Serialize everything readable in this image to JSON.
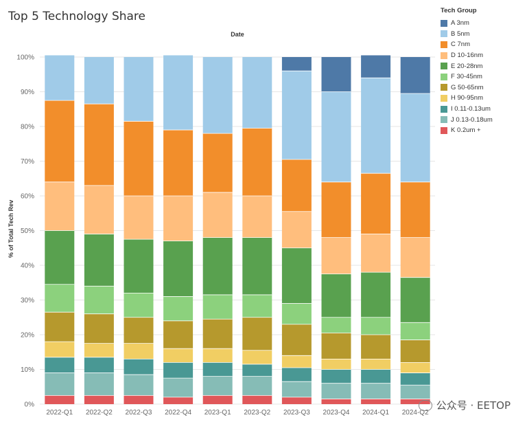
{
  "chart_data": {
    "type": "bar",
    "stacked": true,
    "title": "Top 5 Technology Share",
    "xlabel": "Date",
    "ylabel": "% of Total Tech Rev",
    "ylim": [
      0,
      100
    ],
    "yticks": [
      0,
      10,
      20,
      30,
      40,
      50,
      60,
      70,
      80,
      90,
      100
    ],
    "ytick_labels": [
      "0%",
      "10%",
      "20%",
      "30%",
      "40%",
      "50%",
      "60%",
      "70%",
      "80%",
      "90%",
      "100%"
    ],
    "gridlines": true,
    "legend_title": "Tech Group",
    "legend_position": "right",
    "categories": [
      "2022-Q1",
      "2022-Q2",
      "2022-Q3",
      "2022-Q4",
      "2023-Q1",
      "2023-Q2",
      "2023-Q3",
      "2023-Q4",
      "2024-Q1",
      "2024-Q2"
    ],
    "series": [
      {
        "name": "K 0.2um +",
        "color": "#e05759",
        "values": [
          2.5,
          2.5,
          2.5,
          2.0,
          2.5,
          2.5,
          2.0,
          1.5,
          1.5,
          1.5
        ]
      },
      {
        "name": "J 0.13-0.18um",
        "color": "#86bcb6",
        "values": [
          6.5,
          6.5,
          6.0,
          5.5,
          5.5,
          5.5,
          4.5,
          4.5,
          4.5,
          4.0
        ]
      },
      {
        "name": "I 0.11-0.13um",
        "color": "#499894",
        "values": [
          4.5,
          4.5,
          4.5,
          4.5,
          4.0,
          3.5,
          4.0,
          4.0,
          4.0,
          3.5
        ]
      },
      {
        "name": "H 90-95nm",
        "color": "#f1ce63",
        "values": [
          4.5,
          4.0,
          4.5,
          4.0,
          4.0,
          4.0,
          3.5,
          3.0,
          3.0,
          3.0
        ]
      },
      {
        "name": "G 50-65nm",
        "color": "#b6992d",
        "values": [
          8.5,
          8.5,
          7.5,
          8.0,
          8.5,
          9.5,
          9.0,
          7.5,
          7.0,
          6.5
        ]
      },
      {
        "name": "F 30-45nm",
        "color": "#8cd17d",
        "values": [
          8.0,
          8.0,
          7.0,
          7.0,
          7.0,
          6.5,
          6.0,
          4.5,
          5.0,
          5.0
        ]
      },
      {
        "name": "E 20-28nm",
        "color": "#59a14f",
        "values": [
          15.5,
          15.0,
          15.5,
          16.0,
          16.5,
          16.5,
          16.0,
          12.5,
          13.0,
          13.0
        ]
      },
      {
        "name": "D 10-16nm",
        "color": "#ffbe7d",
        "values": [
          14.0,
          14.0,
          12.5,
          13.0,
          13.0,
          12.0,
          10.5,
          10.5,
          11.0,
          11.5
        ]
      },
      {
        "name": "C 7nm",
        "color": "#f28e2b",
        "values": [
          23.5,
          23.5,
          21.5,
          19.0,
          17.0,
          19.5,
          15.0,
          16.0,
          17.5,
          16.0
        ]
      },
      {
        "name": "B 5nm",
        "color": "#a0cbe8",
        "values": [
          13.0,
          13.5,
          18.5,
          21.5,
          22.0,
          20.5,
          25.5,
          26.0,
          27.5,
          25.5
        ]
      },
      {
        "name": "A 3nm",
        "color": "#4e79a7",
        "values": [
          0,
          0,
          0,
          0,
          0,
          0,
          4.0,
          10.0,
          6.5,
          10.5
        ]
      }
    ]
  },
  "legend_order": [
    "A 3nm",
    "B 5nm",
    "C 7nm",
    "D 10-16nm",
    "E 20-28nm",
    "F 30-45nm",
    "G 50-65nm",
    "H 90-95nm",
    "I 0.11-0.13um",
    "J 0.13-0.18um",
    "K 0.2um +"
  ],
  "watermark": {
    "text": "公众号 · EETOP"
  }
}
